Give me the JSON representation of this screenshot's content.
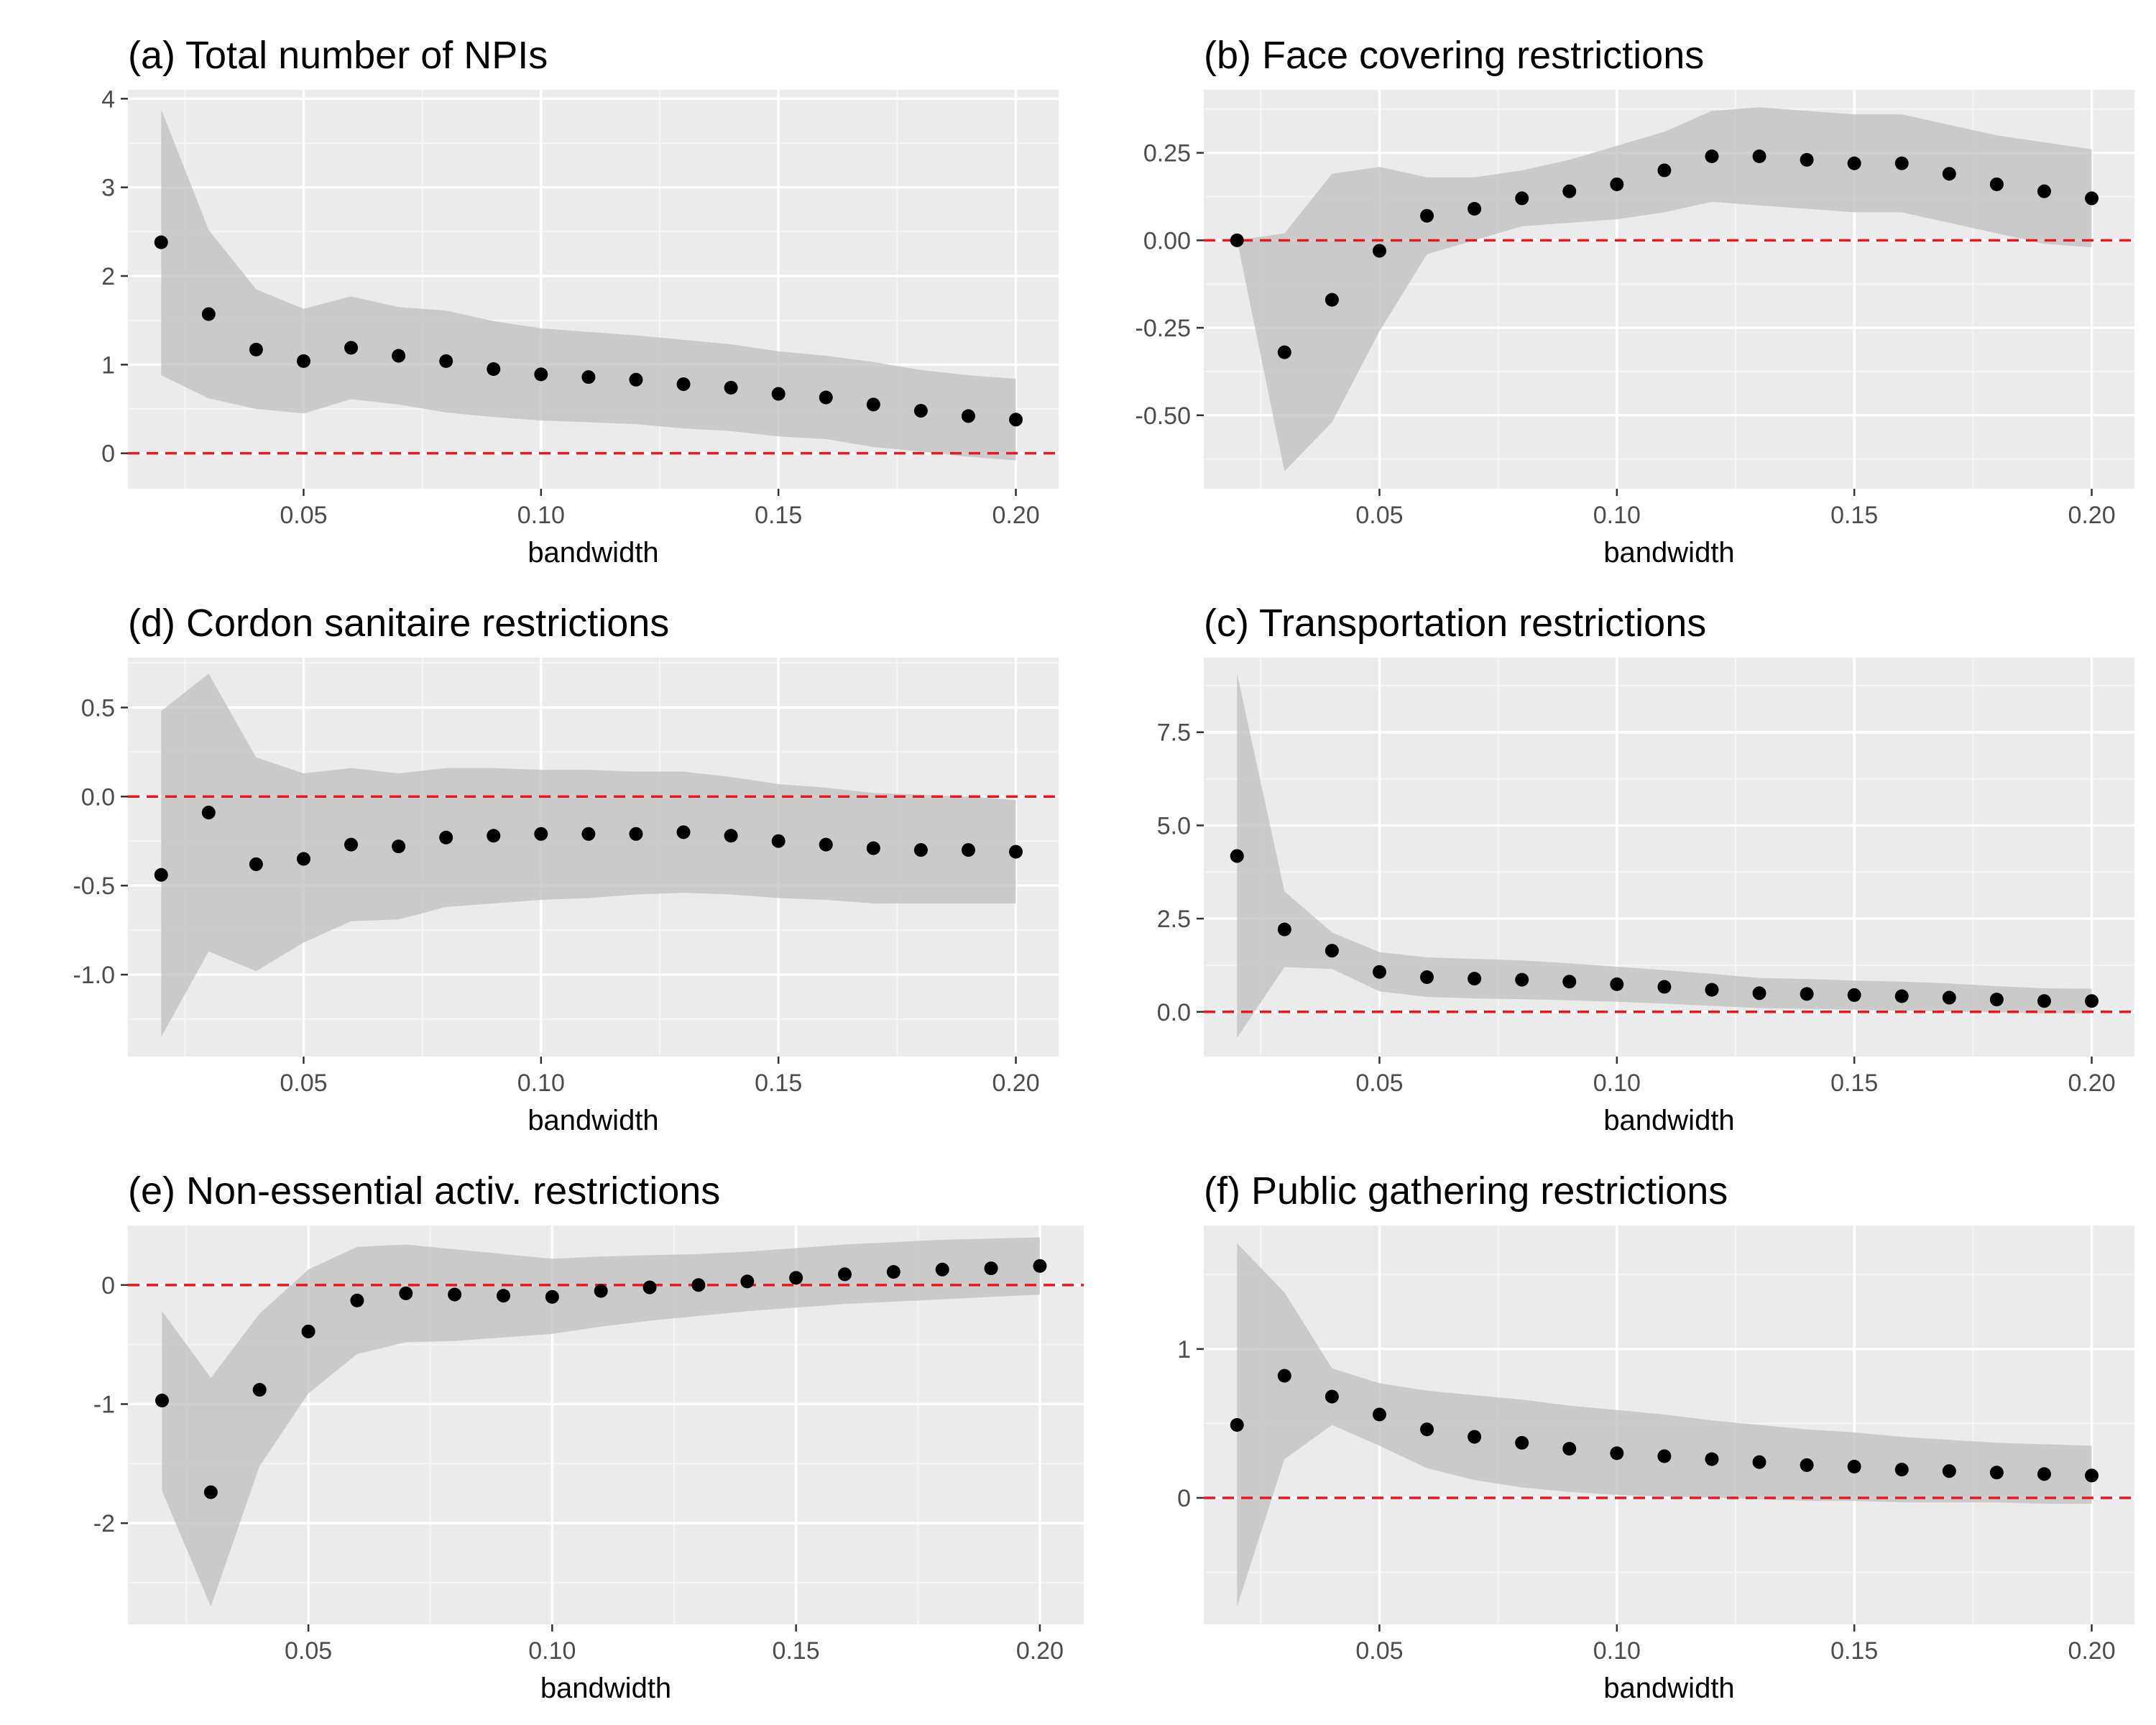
{
  "figure": {
    "colors": {
      "panel_bg": "#ebebeb",
      "grid_major": "#ffffff",
      "grid_minor": "#f5f5f5",
      "ribbon": "#bdbdbd",
      "point": "#000000",
      "zero_line": "#e41a1c",
      "tick_text": "#4d4d4d"
    }
  },
  "chart_data": [
    {
      "type": "scatter",
      "title": "(a) Total number of NPIs",
      "xlabel": "bandwidth",
      "ylabel": "",
      "xlim": [
        0.013,
        0.209
      ],
      "ylim": [
        -0.4,
        4.1
      ],
      "x_ticks": [
        "0.05",
        "0.10",
        "0.15",
        "0.20"
      ],
      "y_ticks": [
        "0",
        "1",
        "2",
        "3",
        "4"
      ],
      "reference_line": 0,
      "x": [
        0.02,
        0.03,
        0.04,
        0.05,
        0.06,
        0.07,
        0.08,
        0.09,
        0.1,
        0.11,
        0.12,
        0.13,
        0.14,
        0.15,
        0.16,
        0.17,
        0.18,
        0.19,
        0.2
      ],
      "estimate": [
        2.38,
        1.57,
        1.17,
        1.04,
        1.19,
        1.1,
        1.04,
        0.95,
        0.89,
        0.86,
        0.83,
        0.78,
        0.74,
        0.67,
        0.63,
        0.55,
        0.48,
        0.42,
        0.38
      ],
      "lower": [
        0.88,
        0.62,
        0.5,
        0.45,
        0.61,
        0.55,
        0.46,
        0.41,
        0.37,
        0.35,
        0.33,
        0.28,
        0.25,
        0.19,
        0.16,
        0.07,
        0.02,
        -0.04,
        -0.08
      ],
      "upper": [
        3.88,
        2.52,
        1.85,
        1.63,
        1.77,
        1.65,
        1.61,
        1.49,
        1.41,
        1.37,
        1.33,
        1.28,
        1.23,
        1.15,
        1.1,
        1.03,
        0.94,
        0.88,
        0.84
      ]
    },
    {
      "type": "scatter",
      "title": "(b) Face covering restrictions",
      "xlabel": "bandwidth",
      "ylabel": "",
      "xlim": [
        0.013,
        0.209
      ],
      "ylim": [
        -0.71,
        0.43
      ],
      "x_ticks": [
        "0.05",
        "0.10",
        "0.15",
        "0.20"
      ],
      "y_ticks": [
        "0.25",
        "0.00",
        "-0.25",
        "-0.50"
      ],
      "reference_line": 0,
      "x": [
        0.02,
        0.03,
        0.04,
        0.05,
        0.06,
        0.07,
        0.08,
        0.09,
        0.1,
        0.11,
        0.12,
        0.13,
        0.14,
        0.15,
        0.16,
        0.17,
        0.18,
        0.19,
        0.2
      ],
      "estimate": [
        0.0,
        -0.32,
        -0.17,
        -0.03,
        0.07,
        0.09,
        0.12,
        0.14,
        0.16,
        0.2,
        0.24,
        0.24,
        0.23,
        0.22,
        0.22,
        0.19,
        0.16,
        0.14,
        0.12
      ],
      "lower": [
        0.0,
        -0.66,
        -0.52,
        -0.26,
        -0.04,
        0.0,
        0.04,
        0.05,
        0.06,
        0.08,
        0.11,
        0.1,
        0.09,
        0.08,
        0.08,
        0.05,
        0.02,
        -0.01,
        -0.02
      ],
      "upper": [
        0.0,
        0.02,
        0.19,
        0.21,
        0.18,
        0.18,
        0.2,
        0.23,
        0.27,
        0.31,
        0.37,
        0.38,
        0.37,
        0.36,
        0.36,
        0.33,
        0.3,
        0.28,
        0.26
      ]
    },
    {
      "type": "scatter",
      "title": "(d) Cordon sanitaire restrictions",
      "xlabel": "bandwidth",
      "ylabel": "",
      "xlim": [
        0.013,
        0.209
      ],
      "ylim": [
        -1.46,
        0.78
      ],
      "x_ticks": [
        "0.05",
        "0.10",
        "0.15",
        "0.20"
      ],
      "y_ticks": [
        "0.5",
        "0.0",
        "-0.5",
        "-1.0"
      ],
      "reference_line": 0,
      "x": [
        0.02,
        0.03,
        0.04,
        0.05,
        0.06,
        0.07,
        0.08,
        0.09,
        0.1,
        0.11,
        0.12,
        0.13,
        0.14,
        0.15,
        0.16,
        0.17,
        0.18,
        0.19,
        0.2
      ],
      "estimate": [
        -0.44,
        -0.09,
        -0.38,
        -0.35,
        -0.27,
        -0.28,
        -0.23,
        -0.22,
        -0.21,
        -0.21,
        -0.21,
        -0.2,
        -0.22,
        -0.25,
        -0.27,
        -0.29,
        -0.3,
        -0.3,
        -0.31
      ],
      "lower": [
        -1.35,
        -0.87,
        -0.98,
        -0.82,
        -0.7,
        -0.69,
        -0.62,
        -0.6,
        -0.58,
        -0.57,
        -0.55,
        -0.54,
        -0.55,
        -0.57,
        -0.58,
        -0.6,
        -0.6,
        -0.6,
        -0.6
      ],
      "upper": [
        0.48,
        0.69,
        0.22,
        0.13,
        0.16,
        0.13,
        0.16,
        0.16,
        0.15,
        0.15,
        0.14,
        0.14,
        0.11,
        0.07,
        0.05,
        0.02,
        0.01,
        0.0,
        -0.02
      ]
    },
    {
      "type": "scatter",
      "title": "(c) Transportation restrictions",
      "xlabel": "bandwidth",
      "ylabel": "",
      "xlim": [
        0.013,
        0.209
      ],
      "ylim": [
        -1.2,
        9.5
      ],
      "x_ticks": [
        "0.05",
        "0.10",
        "0.15",
        "0.20"
      ],
      "y_ticks": [
        "7.5",
        "5.0",
        "2.5",
        "0.0"
      ],
      "reference_line": 0,
      "x": [
        0.02,
        0.03,
        0.04,
        0.05,
        0.06,
        0.07,
        0.08,
        0.09,
        0.1,
        0.11,
        0.12,
        0.13,
        0.14,
        0.15,
        0.16,
        0.17,
        0.18,
        0.19,
        0.2
      ],
      "estimate": [
        4.18,
        2.21,
        1.64,
        1.07,
        0.93,
        0.89,
        0.86,
        0.81,
        0.74,
        0.67,
        0.59,
        0.5,
        0.48,
        0.45,
        0.42,
        0.38,
        0.33,
        0.29,
        0.29
      ],
      "lower": [
        -0.7,
        1.2,
        1.15,
        0.55,
        0.4,
        0.36,
        0.34,
        0.31,
        0.27,
        0.22,
        0.16,
        0.1,
        0.08,
        0.06,
        0.03,
        0.01,
        -0.02,
        -0.04,
        -0.04
      ],
      "upper": [
        9.07,
        3.23,
        2.13,
        1.6,
        1.46,
        1.42,
        1.38,
        1.3,
        1.21,
        1.12,
        1.02,
        0.91,
        0.88,
        0.84,
        0.81,
        0.76,
        0.69,
        0.63,
        0.62
      ]
    },
    {
      "type": "scatter",
      "title": "(e) Non-essential activ. restrictions",
      "xlabel": "bandwidth",
      "ylabel": "",
      "xlim": [
        0.013,
        0.209
      ],
      "ylim": [
        -2.85,
        0.5
      ],
      "x_ticks": [
        "0.05",
        "0.10",
        "0.15",
        "0.20"
      ],
      "y_ticks": [
        "0",
        "-1",
        "-2"
      ],
      "reference_line": 0,
      "x": [
        0.02,
        0.03,
        0.04,
        0.05,
        0.06,
        0.07,
        0.08,
        0.09,
        0.1,
        0.11,
        0.12,
        0.13,
        0.14,
        0.15,
        0.16,
        0.17,
        0.18,
        0.19,
        0.2
      ],
      "estimate": [
        -0.97,
        -1.74,
        -0.88,
        -0.39,
        -0.13,
        -0.07,
        -0.08,
        -0.09,
        -0.1,
        -0.05,
        -0.02,
        0.0,
        0.03,
        0.06,
        0.09,
        0.11,
        0.13,
        0.14,
        0.16
      ],
      "lower": [
        -1.73,
        -2.7,
        -1.52,
        -0.91,
        -0.58,
        -0.48,
        -0.47,
        -0.44,
        -0.41,
        -0.35,
        -0.3,
        -0.26,
        -0.22,
        -0.19,
        -0.16,
        -0.14,
        -0.12,
        -0.1,
        -0.08
      ],
      "upper": [
        -0.22,
        -0.78,
        -0.24,
        0.13,
        0.32,
        0.34,
        0.3,
        0.26,
        0.22,
        0.24,
        0.25,
        0.26,
        0.28,
        0.31,
        0.34,
        0.36,
        0.38,
        0.39,
        0.4
      ]
    },
    {
      "type": "scatter",
      "title": "(f) Public gathering restrictions",
      "xlabel": "bandwidth",
      "ylabel": "",
      "xlim": [
        0.013,
        0.209
      ],
      "ylim": [
        -0.85,
        1.83
      ],
      "x_ticks": [
        "0.05",
        "0.10",
        "0.15",
        "0.20"
      ],
      "y_ticks": [
        "1",
        "0"
      ],
      "reference_line": 0,
      "x": [
        0.02,
        0.03,
        0.04,
        0.05,
        0.06,
        0.07,
        0.08,
        0.09,
        0.1,
        0.11,
        0.12,
        0.13,
        0.14,
        0.15,
        0.16,
        0.17,
        0.18,
        0.19,
        0.2
      ],
      "estimate": [
        0.49,
        0.82,
        0.68,
        0.56,
        0.46,
        0.41,
        0.37,
        0.33,
        0.3,
        0.28,
        0.26,
        0.24,
        0.22,
        0.21,
        0.19,
        0.18,
        0.17,
        0.16,
        0.15
      ],
      "lower": [
        -0.73,
        0.26,
        0.49,
        0.35,
        0.2,
        0.12,
        0.07,
        0.04,
        0.02,
        0.01,
        0.0,
        -0.01,
        -0.02,
        -0.02,
        -0.03,
        -0.03,
        -0.03,
        -0.04,
        -0.04
      ],
      "upper": [
        1.71,
        1.38,
        0.87,
        0.77,
        0.72,
        0.69,
        0.66,
        0.62,
        0.59,
        0.56,
        0.52,
        0.49,
        0.46,
        0.44,
        0.41,
        0.39,
        0.37,
        0.36,
        0.35
      ]
    }
  ]
}
